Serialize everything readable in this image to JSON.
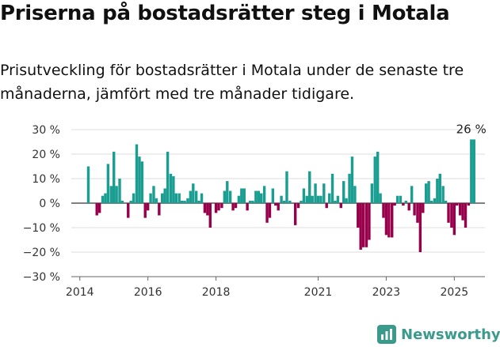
{
  "title": "Priserna på bostadsrätter steg i Motala",
  "subtitle": "Prisutveckling för bostadsrätter i Motala under de senaste tre månaderna, jämfört med tre månader tidigare.",
  "brand": {
    "name": "Newsworthy",
    "icon": "newsworthy-logo-icon",
    "color": "#3a9a8c"
  },
  "colors": {
    "positive": "#1a9e92",
    "negative": "#99004c",
    "grid": "#dddddd",
    "zero": "#000000"
  },
  "chart_data": {
    "type": "bar",
    "title": "Priserna på bostadsrätter steg i Motala",
    "subtitle": "Prisutveckling för bostadsrätter i Motala under de senaste tre månaderna, jämfört med tre månader tidigare.",
    "xlabel": "",
    "ylabel": "",
    "ylim": [
      -30,
      30
    ],
    "y_ticks": [
      30,
      20,
      10,
      0,
      -10,
      -20,
      -30
    ],
    "y_tick_labels": [
      "30 %",
      "20 %",
      "10 %",
      "0 %",
      "−10 %",
      "−20 %",
      "−30 %"
    ],
    "x_ticks": [
      2014,
      2016,
      2018,
      2021,
      2023,
      2025
    ],
    "x_tick_labels": [
      "2014",
      "2016",
      "2018",
      "2021",
      "2023",
      "2025"
    ],
    "xlim": [
      2013.75,
      2025.9
    ],
    "grid": true,
    "annotation": {
      "text": "26 %",
      "x": 2025.38,
      "y": 26
    },
    "series": [
      {
        "values": [
          {
            "x": 2014.25,
            "y": 15
          },
          {
            "x": 2014.5,
            "y": -5
          },
          {
            "x": 2014.58,
            "y": -4
          },
          {
            "x": 2014.67,
            "y": 3
          },
          {
            "x": 2014.75,
            "y": 4
          },
          {
            "x": 2014.83,
            "y": 16
          },
          {
            "x": 2014.92,
            "y": 7
          },
          {
            "x": 2015.0,
            "y": 21
          },
          {
            "x": 2015.08,
            "y": 7
          },
          {
            "x": 2015.17,
            "y": 10
          },
          {
            "x": 2015.25,
            "y": 1
          },
          {
            "x": 2015.42,
            "y": -6
          },
          {
            "x": 2015.5,
            "y": 1
          },
          {
            "x": 2015.58,
            "y": 4
          },
          {
            "x": 2015.67,
            "y": 24
          },
          {
            "x": 2015.75,
            "y": 19
          },
          {
            "x": 2015.83,
            "y": 17
          },
          {
            "x": 2015.92,
            "y": -6
          },
          {
            "x": 2016.0,
            "y": -3
          },
          {
            "x": 2016.08,
            "y": 4
          },
          {
            "x": 2016.17,
            "y": 7
          },
          {
            "x": 2016.25,
            "y": 2
          },
          {
            "x": 2016.33,
            "y": -5
          },
          {
            "x": 2016.42,
            "y": 4
          },
          {
            "x": 2016.5,
            "y": 6
          },
          {
            "x": 2016.58,
            "y": 21
          },
          {
            "x": 2016.67,
            "y": 12
          },
          {
            "x": 2016.75,
            "y": 11
          },
          {
            "x": 2016.83,
            "y": 4
          },
          {
            "x": 2016.92,
            "y": 4
          },
          {
            "x": 2017.0,
            "y": 1
          },
          {
            "x": 2017.08,
            "y": 1
          },
          {
            "x": 2017.17,
            "y": 2
          },
          {
            "x": 2017.25,
            "y": 5
          },
          {
            "x": 2017.33,
            "y": 8
          },
          {
            "x": 2017.42,
            "y": 5
          },
          {
            "x": 2017.5,
            "y": 1
          },
          {
            "x": 2017.58,
            "y": 4
          },
          {
            "x": 2017.67,
            "y": -4
          },
          {
            "x": 2017.75,
            "y": -5
          },
          {
            "x": 2017.83,
            "y": -10
          },
          {
            "x": 2017.92,
            "y": 0
          },
          {
            "x": 2018.0,
            "y": -4
          },
          {
            "x": 2018.08,
            "y": -3
          },
          {
            "x": 2018.17,
            "y": -2
          },
          {
            "x": 2018.25,
            "y": 5
          },
          {
            "x": 2018.33,
            "y": 9
          },
          {
            "x": 2018.42,
            "y": 5
          },
          {
            "x": 2018.5,
            "y": -3
          },
          {
            "x": 2018.58,
            "y": -2
          },
          {
            "x": 2018.67,
            "y": 3
          },
          {
            "x": 2018.75,
            "y": 6
          },
          {
            "x": 2018.83,
            "y": 6
          },
          {
            "x": 2018.92,
            "y": -3
          },
          {
            "x": 2019.0,
            "y": 1
          },
          {
            "x": 2019.08,
            "y": 1
          },
          {
            "x": 2019.17,
            "y": 5
          },
          {
            "x": 2019.25,
            "y": 5
          },
          {
            "x": 2019.33,
            "y": 4
          },
          {
            "x": 2019.42,
            "y": 7
          },
          {
            "x": 2019.5,
            "y": -8
          },
          {
            "x": 2019.58,
            "y": -6
          },
          {
            "x": 2019.67,
            "y": 6
          },
          {
            "x": 2019.75,
            "y": -1
          },
          {
            "x": 2019.83,
            "y": -3
          },
          {
            "x": 2019.92,
            "y": 3
          },
          {
            "x": 2020.0,
            "y": 1
          },
          {
            "x": 2020.08,
            "y": 13
          },
          {
            "x": 2020.17,
            "y": 1
          },
          {
            "x": 2020.25,
            "y": 0
          },
          {
            "x": 2020.33,
            "y": -9
          },
          {
            "x": 2020.42,
            "y": -2
          },
          {
            "x": 2020.5,
            "y": 1
          },
          {
            "x": 2020.58,
            "y": 6
          },
          {
            "x": 2020.67,
            "y": 3
          },
          {
            "x": 2020.75,
            "y": 13
          },
          {
            "x": 2020.83,
            "y": 3
          },
          {
            "x": 2020.92,
            "y": 8
          },
          {
            "x": 2021.0,
            "y": 3
          },
          {
            "x": 2021.08,
            "y": 3
          },
          {
            "x": 2021.17,
            "y": 8
          },
          {
            "x": 2021.25,
            "y": -2
          },
          {
            "x": 2021.33,
            "y": 4
          },
          {
            "x": 2021.42,
            "y": 12
          },
          {
            "x": 2021.5,
            "y": 1
          },
          {
            "x": 2021.58,
            "y": 3
          },
          {
            "x": 2021.67,
            "y": -2
          },
          {
            "x": 2021.75,
            "y": 9
          },
          {
            "x": 2021.83,
            "y": 2
          },
          {
            "x": 2021.92,
            "y": 12
          },
          {
            "x": 2022.0,
            "y": 19
          },
          {
            "x": 2022.08,
            "y": 7
          },
          {
            "x": 2022.17,
            "y": -10
          },
          {
            "x": 2022.25,
            "y": -19
          },
          {
            "x": 2022.33,
            "y": -18
          },
          {
            "x": 2022.42,
            "y": -18
          },
          {
            "x": 2022.5,
            "y": -15
          },
          {
            "x": 2022.58,
            "y": 8
          },
          {
            "x": 2022.67,
            "y": 19
          },
          {
            "x": 2022.75,
            "y": 21
          },
          {
            "x": 2022.83,
            "y": 4
          },
          {
            "x": 2022.92,
            "y": -6
          },
          {
            "x": 2023.0,
            "y": -13
          },
          {
            "x": 2023.08,
            "y": -14
          },
          {
            "x": 2023.17,
            "y": -14
          },
          {
            "x": 2023.25,
            "y": -1
          },
          {
            "x": 2023.33,
            "y": 3
          },
          {
            "x": 2023.42,
            "y": 3
          },
          {
            "x": 2023.5,
            "y": -1
          },
          {
            "x": 2023.58,
            "y": 1
          },
          {
            "x": 2023.67,
            "y": -3
          },
          {
            "x": 2023.75,
            "y": 7
          },
          {
            "x": 2023.83,
            "y": -5
          },
          {
            "x": 2023.92,
            "y": -8
          },
          {
            "x": 2024.0,
            "y": -20
          },
          {
            "x": 2024.08,
            "y": -4
          },
          {
            "x": 2024.17,
            "y": 8
          },
          {
            "x": 2024.25,
            "y": 9
          },
          {
            "x": 2024.33,
            "y": 1
          },
          {
            "x": 2024.42,
            "y": 2
          },
          {
            "x": 2024.5,
            "y": 10
          },
          {
            "x": 2024.58,
            "y": 12
          },
          {
            "x": 2024.67,
            "y": 7
          },
          {
            "x": 2024.75,
            "y": 1
          },
          {
            "x": 2024.83,
            "y": -8
          },
          {
            "x": 2024.92,
            "y": -10
          },
          {
            "x": 2025.0,
            "y": -13
          },
          {
            "x": 2025.08,
            "y": -1
          },
          {
            "x": 2025.17,
            "y": -5
          },
          {
            "x": 2025.25,
            "y": -7
          },
          {
            "x": 2025.33,
            "y": -10
          },
          {
            "x": 2025.42,
            "y": -1
          },
          {
            "x": 2025.5,
            "y": 26
          },
          {
            "x": 2025.58,
            "y": 26
          }
        ]
      }
    ]
  }
}
